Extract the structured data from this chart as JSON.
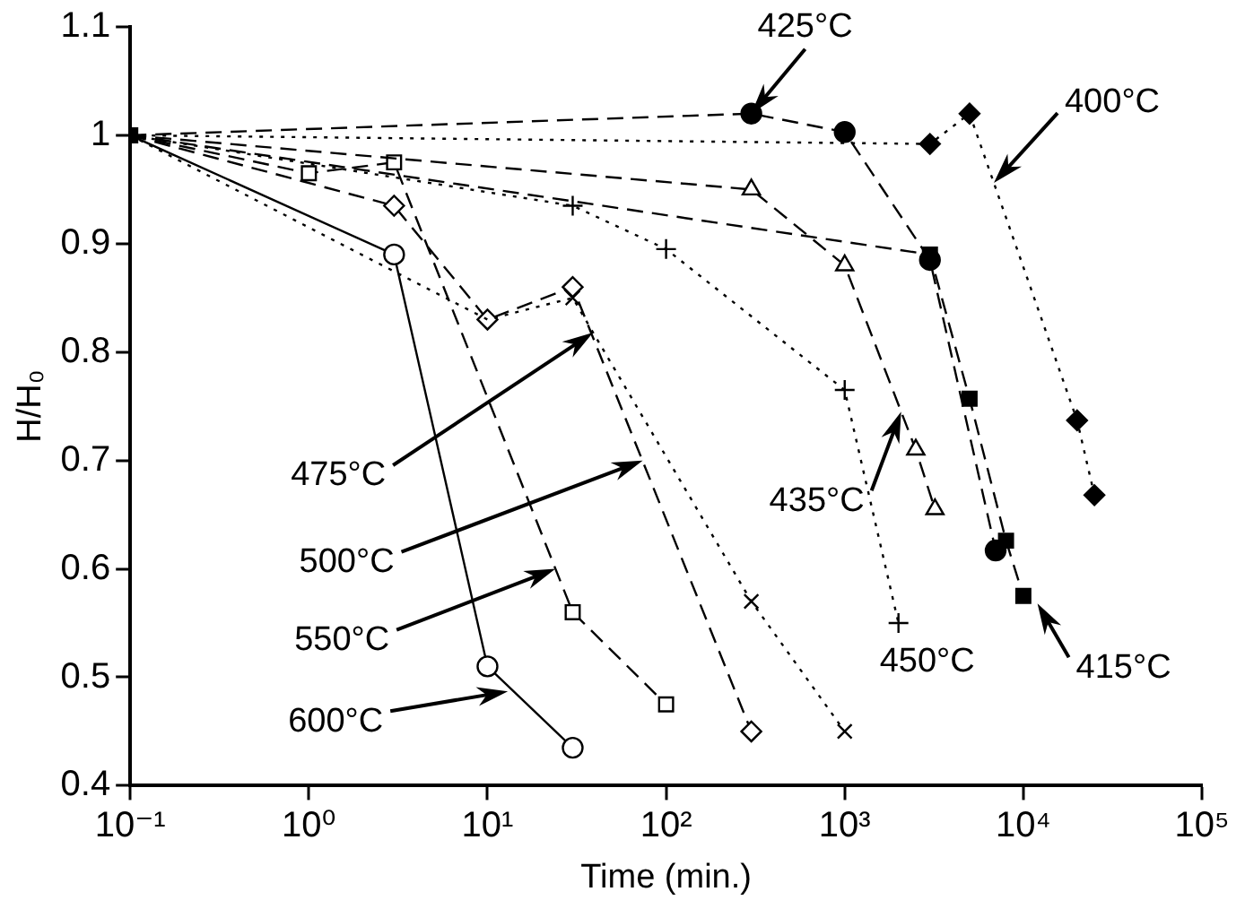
{
  "chart_data": {
    "type": "line",
    "xlabel": "Time (min.)",
    "ylabel": "H/H₀",
    "log": "x",
    "grid": false,
    "legend": false,
    "xlim": [
      0.1,
      100000
    ],
    "xticks": [
      {
        "value": 0.1,
        "label": "10⁻¹"
      },
      {
        "value": 1,
        "label": "10⁰"
      },
      {
        "value": 10,
        "label": "10¹"
      },
      {
        "value": 100,
        "label": "10²"
      },
      {
        "value": 1000,
        "label": "10³"
      },
      {
        "value": 10000,
        "label": "10⁴"
      },
      {
        "value": 100000,
        "label": "10⁵"
      }
    ],
    "ylim": [
      0.4,
      1.1
    ],
    "yticks": [
      0.4,
      0.5,
      0.6,
      0.7,
      0.8,
      0.9,
      1,
      1.1
    ],
    "series": [
      {
        "color": "#000000",
        "marker": "square",
        "line_style": "dashed",
        "x": [
          0.1,
          3000,
          5000,
          8000,
          10000
        ],
        "values": [
          1,
          0.89,
          0.757,
          0.626,
          0.575
        ]
      },
      {
        "color": "#000000",
        "marker": "circle",
        "line_style": "solid",
        "x": [
          0.1,
          3,
          10,
          30
        ],
        "values": [
          1,
          0.89,
          0.51,
          0.435
        ]
      },
      {
        "color": "#000000",
        "marker": "square",
        "line_style": "dashed",
        "x": [
          0.1,
          1,
          3,
          30,
          100
        ],
        "values": [
          1,
          0.965,
          0.975,
          0.56,
          0.475
        ]
      },
      {
        "color": "#000000",
        "marker": "diamond",
        "line_style": "dashed",
        "x": [
          0.1,
          3,
          10,
          30,
          300
        ],
        "values": [
          1,
          0.935,
          0.83,
          0.86,
          0.45
        ]
      },
      {
        "color": "#000000",
        "marker": "cross",
        "line_style": "dotted",
        "x": [
          0.1,
          10,
          30,
          300,
          1000
        ],
        "values": [
          1,
          0.83,
          0.85,
          0.57,
          0.45
        ]
      },
      {
        "color": "#000000",
        "marker": "cross",
        "line_style": "dotted",
        "x": [
          0.1,
          30,
          100,
          1000,
          2000
        ],
        "values": [
          1,
          0.935,
          0.895,
          0.765,
          0.55
        ]
      },
      {
        "color": "#000000",
        "marker": "triangle",
        "line_style": "dashed",
        "x": [
          0.1,
          300,
          1000,
          2500,
          3200
        ],
        "values": [
          1,
          0.95,
          0.88,
          0.71,
          0.655
        ]
      },
      {
        "color": "#000000",
        "marker": "circle",
        "line_style": "dashed",
        "x": [
          0.1,
          300,
          1000,
          3000,
          7000
        ],
        "values": [
          1,
          1.02,
          1.003,
          0.885,
          0.617
        ]
      },
      {
        "color": "#000000",
        "marker": "diamond",
        "line_style": "dotted",
        "x": [
          0.1,
          3000,
          5000,
          20000,
          25000
        ],
        "values": [
          1,
          0.992,
          1.02,
          0.737,
          0.668
        ]
      }
    ],
    "annotations": [
      {
        "text": "425°C",
        "x": 300,
        "y": 1.02
      },
      {
        "text": "400°C",
        "x": 6840,
        "y": 0.956
      },
      {
        "text": "475°C",
        "x": 39,
        "y": 0.818
      },
      {
        "text": "500°C",
        "x": 74,
        "y": 0.7
      },
      {
        "text": "550°C",
        "x": 24,
        "y": 0.6
      },
      {
        "text": "600°C",
        "x": 13,
        "y": 0.487
      },
      {
        "text": "435°C",
        "x": 2070,
        "y": 0.745
      },
      {
        "text": "450°C",
        "x": 2000,
        "y": 0.55
      },
      {
        "text": "415°C",
        "x": 12000,
        "y": 0.568
      }
    ]
  }
}
